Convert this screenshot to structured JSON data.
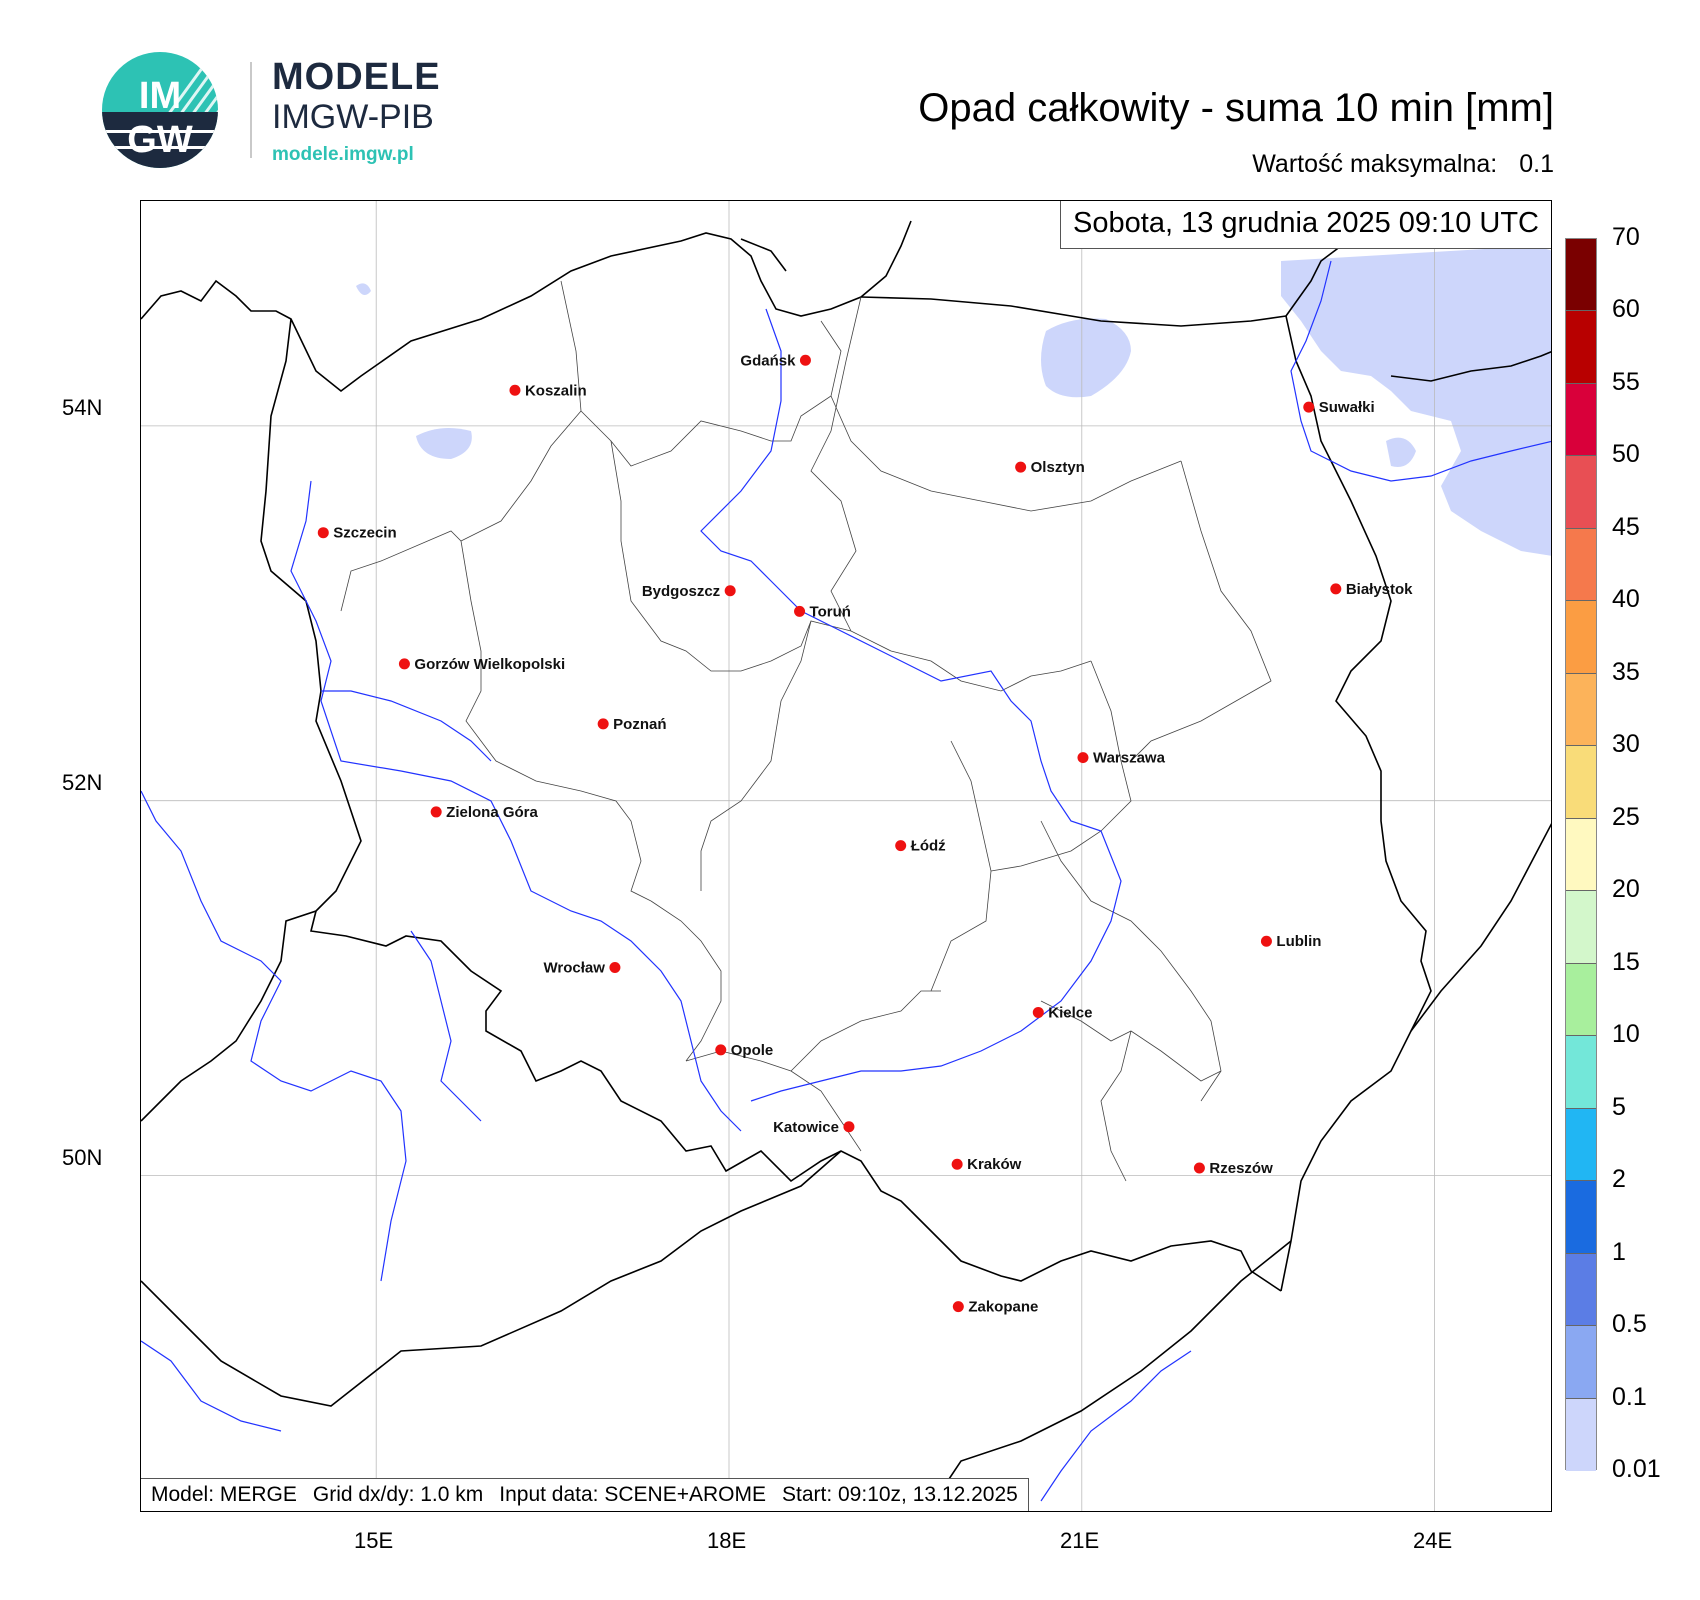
{
  "logo": {
    "circle_text_top": "IM",
    "circle_text_bottom": "GW",
    "brand_line1": "MODELE",
    "brand_line2": "IMGW-PIB",
    "brand_url": "modele.imgw.pl"
  },
  "title": "Opad całkowity - suma 10 min [mm]",
  "max_value": {
    "label": "Wartość maksymalna:",
    "value": "0.1"
  },
  "timestamp": "Sobota, 13 grudnia 2025 09:10 UTC",
  "info_bar": {
    "model": "Model: MERGE",
    "grid": "Grid dx/dy: 1.0 km",
    "input": "Input data: SCENE+AROME",
    "start": "Start: 09:10z, 13.12.2025"
  },
  "axes": {
    "lat_labels": [
      "54N",
      "52N",
      "50N"
    ],
    "lon_labels": [
      "15E",
      "18E",
      "21E",
      "24E"
    ],
    "lon_range": [
      13,
      25
    ],
    "lat_range": [
      48.2,
      55.2
    ]
  },
  "colorbar": {
    "labels": [
      "70",
      "60",
      "55",
      "50",
      "45",
      "40",
      "35",
      "30",
      "25",
      "20",
      "15",
      "10",
      "5",
      "2",
      "1",
      "0.5",
      "0.1",
      "0.01"
    ],
    "colors": [
      "#7a0000",
      "#b80000",
      "#d9003a",
      "#e84f54",
      "#f5794c",
      "#fb9d43",
      "#fcb35a",
      "#f9dc79",
      "#fff9c0",
      "#d3f7cb",
      "#a8ef9d",
      "#73e7d9",
      "#21b6f3",
      "#1a6be0",
      "#5b7de5",
      "#8aa8f2",
      "#cdd6fb"
    ]
  },
  "cities": [
    {
      "name": "Gdańsk",
      "lon": 18.65,
      "lat": 54.35
    },
    {
      "name": "Koszalin",
      "lon": 16.18,
      "lat": 54.19
    },
    {
      "name": "Suwałki",
      "lon": 22.93,
      "lat": 54.1
    },
    {
      "name": "Olsztyn",
      "lon": 20.48,
      "lat": 53.78
    },
    {
      "name": "Szczecin",
      "lon": 14.55,
      "lat": 53.43
    },
    {
      "name": "Białystok",
      "lon": 23.16,
      "lat": 53.13
    },
    {
      "name": "Bydgoszcz",
      "lon": 18.01,
      "lat": 53.12
    },
    {
      "name": "Toruń",
      "lon": 18.6,
      "lat": 53.01
    },
    {
      "name": "Gorzów Wielkopolski",
      "lon": 15.24,
      "lat": 52.73
    },
    {
      "name": "Poznań",
      "lon": 16.93,
      "lat": 52.41
    },
    {
      "name": "Warszawa",
      "lon": 21.01,
      "lat": 52.23
    },
    {
      "name": "Zielona Góra",
      "lon": 15.51,
      "lat": 51.94
    },
    {
      "name": "Łódź",
      "lon": 19.46,
      "lat": 51.76
    },
    {
      "name": "Lublin",
      "lon": 22.57,
      "lat": 51.25
    },
    {
      "name": "Wrocław",
      "lon": 17.03,
      "lat": 51.11
    },
    {
      "name": "Kielce",
      "lon": 20.63,
      "lat": 50.87
    },
    {
      "name": "Opole",
      "lon": 17.93,
      "lat": 50.67
    },
    {
      "name": "Katowice",
      "lon": 19.02,
      "lat": 50.26
    },
    {
      "name": "Rzeszów",
      "lon": 22.0,
      "lat": 50.04
    },
    {
      "name": "Kraków",
      "lon": 19.94,
      "lat": 50.06
    },
    {
      "name": "Zakopane",
      "lon": 19.95,
      "lat": 49.3
    }
  ],
  "colors": {
    "city_dot": "#ee1111",
    "river": "#2233ff",
    "precip": "#cdd6fb",
    "grid": "#bbbbbb"
  }
}
